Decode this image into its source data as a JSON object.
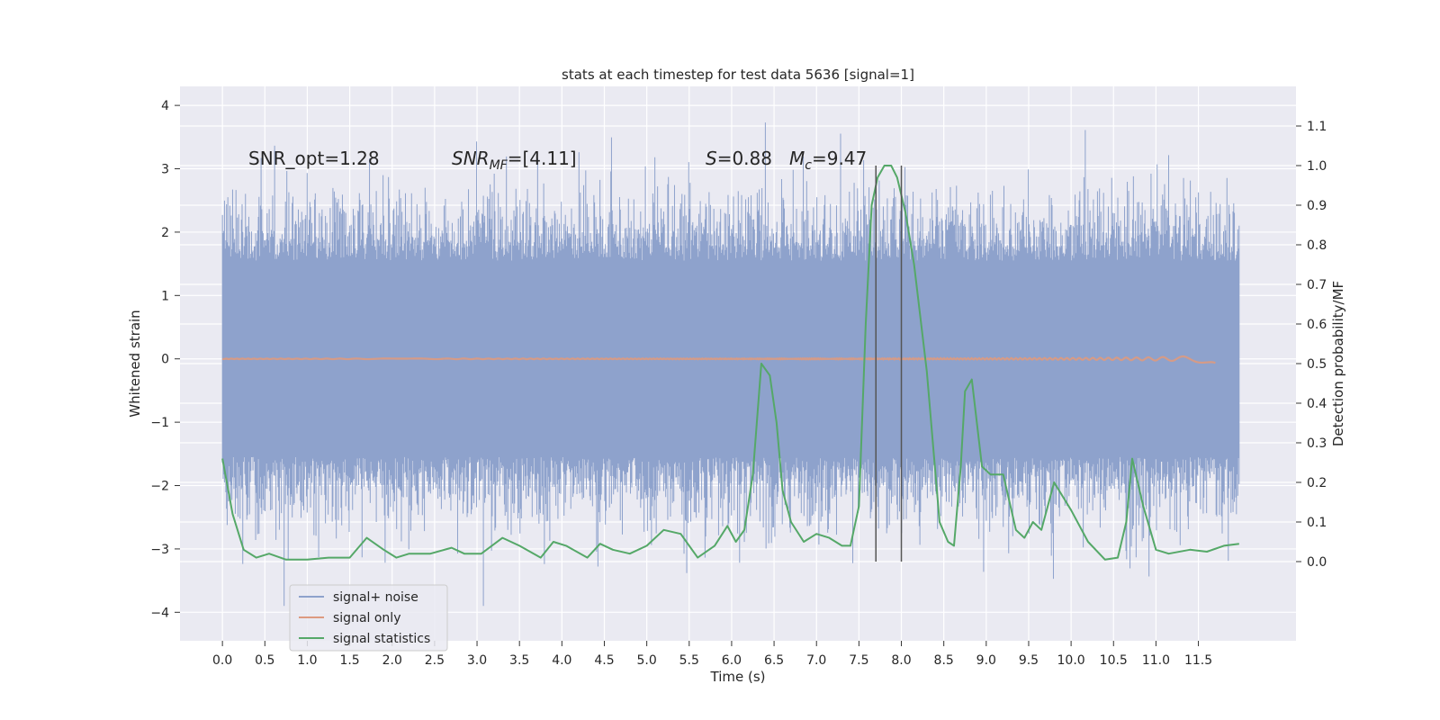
{
  "chart_data": {
    "type": "line",
    "title": "stats at each timestep for test data 5636 [signal=1]",
    "xlabel": "Time (s)",
    "ylabel": "Whitened strain",
    "y2label": "Detection probability/MF",
    "xlim": [
      -0.5,
      12.65
    ],
    "ylim": [
      -4.45,
      4.3
    ],
    "y2lim": [
      -0.2,
      1.2
    ],
    "x_ticks": [
      0.0,
      0.5,
      1.0,
      1.5,
      2.0,
      2.5,
      3.0,
      3.5,
      4.0,
      4.5,
      5.0,
      5.5,
      6.0,
      6.5,
      7.0,
      7.5,
      8.0,
      8.5,
      9.0,
      9.5,
      10.0,
      10.5,
      11.0,
      11.5
    ],
    "x_tick_labels": [
      "0.0",
      "0.5",
      "1.0",
      "1.5",
      "2.0",
      "2.5",
      "3.0",
      "3.5",
      "4.0",
      "4.5",
      "5.0",
      "5.5",
      "6.0",
      "6.5",
      "7.0",
      "7.5",
      "8.0",
      "8.5",
      "9.0",
      "9.5",
      "10.0",
      "10.5",
      "11.0",
      "11.5"
    ],
    "y_ticks": [
      4,
      3,
      2,
      1,
      0,
      -1,
      -2,
      -3,
      -4
    ],
    "y_tick_labels": [
      "4",
      "3",
      "2",
      "1",
      "0",
      "−1",
      "−2",
      "−3",
      "−4"
    ],
    "y2_ticks": [
      1.1,
      1.0,
      0.9,
      0.8,
      0.7,
      0.6,
      0.5,
      0.4,
      0.3,
      0.2,
      0.1,
      0.0
    ],
    "y2_tick_labels": [
      "1.1",
      "1.0",
      "0.9",
      "0.8",
      "0.7",
      "0.6",
      "0.5",
      "0.4",
      "0.3",
      "0.2",
      "0.1",
      "0.0"
    ],
    "grid": true,
    "legend_position": "bottom-left",
    "colors": {
      "noise": "#8ea2cc",
      "signal_only": "#dd9a80",
      "statistics": "#55a868",
      "vlines": "#555555",
      "plot_bg": "#eaeaf2",
      "grid": "#ffffff"
    },
    "noise_x_range": [
      0.0,
      11.98
    ],
    "noise_y_range": [
      -3.9,
      3.92
    ],
    "signal_only_x_range": [
      0.0,
      11.7
    ],
    "vertical_lines_x": [
      7.7,
      8.0
    ],
    "annotations": {
      "snr_opt": "SNR_opt=1.28",
      "snr_mf_main": "SNR",
      "snr_mf_sub": "MF",
      "snr_mf_rest": "=[4.11]",
      "s_sym": "S",
      "s_rest": "=0.88",
      "mc_sym": "M",
      "mc_sub": "c",
      "mc_rest": "=9.47"
    },
    "series": [
      {
        "name": "signal+ noise"
      },
      {
        "name": "signal only"
      },
      {
        "name": "signal statistics",
        "x": [
          0.0,
          0.12,
          0.25,
          0.4,
          0.55,
          0.75,
          1.0,
          1.25,
          1.5,
          1.7,
          1.9,
          2.05,
          2.2,
          2.45,
          2.7,
          2.85,
          3.05,
          3.3,
          3.5,
          3.75,
          3.9,
          4.05,
          4.3,
          4.45,
          4.6,
          4.8,
          5.0,
          5.2,
          5.4,
          5.6,
          5.8,
          5.95,
          6.05,
          6.15,
          6.25,
          6.35,
          6.45,
          6.53,
          6.6,
          6.7,
          6.85,
          7.0,
          7.15,
          7.3,
          7.4,
          7.5,
          7.58,
          7.65,
          7.72,
          7.8,
          7.88,
          7.95,
          8.05,
          8.15,
          8.3,
          8.45,
          8.55,
          8.62,
          8.7,
          8.75,
          8.83,
          8.95,
          9.05,
          9.2,
          9.35,
          9.45,
          9.55,
          9.65,
          9.8,
          10.0,
          10.2,
          10.4,
          10.55,
          10.65,
          10.72,
          10.85,
          11.0,
          11.15,
          11.4,
          11.6,
          11.8,
          11.98
        ],
        "values": [
          0.26,
          0.12,
          0.03,
          0.01,
          0.02,
          0.005,
          0.005,
          0.01,
          0.01,
          0.06,
          0.03,
          0.01,
          0.02,
          0.02,
          0.035,
          0.02,
          0.02,
          0.06,
          0.04,
          0.01,
          0.05,
          0.04,
          0.01,
          0.045,
          0.03,
          0.02,
          0.04,
          0.08,
          0.07,
          0.01,
          0.04,
          0.09,
          0.05,
          0.08,
          0.22,
          0.5,
          0.47,
          0.35,
          0.18,
          0.1,
          0.05,
          0.07,
          0.06,
          0.04,
          0.04,
          0.14,
          0.6,
          0.9,
          0.97,
          1.0,
          1.0,
          0.97,
          0.88,
          0.75,
          0.48,
          0.1,
          0.05,
          0.04,
          0.24,
          0.43,
          0.46,
          0.24,
          0.22,
          0.22,
          0.08,
          0.06,
          0.1,
          0.08,
          0.2,
          0.13,
          0.05,
          0.005,
          0.01,
          0.1,
          0.26,
          0.14,
          0.03,
          0.02,
          0.03,
          0.025,
          0.04,
          0.045
        ]
      }
    ]
  }
}
